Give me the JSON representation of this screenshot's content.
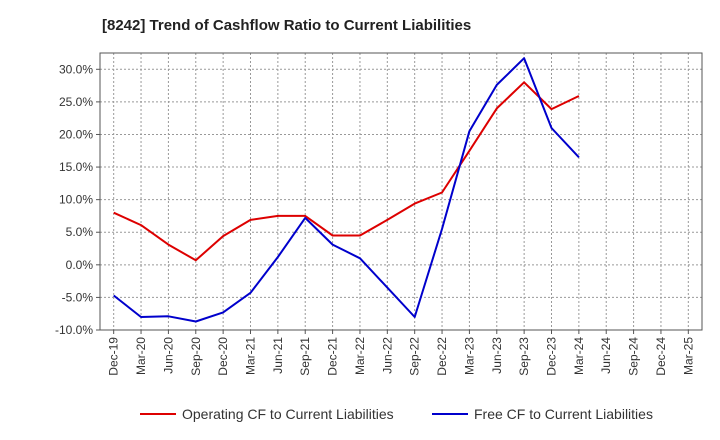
{
  "chart_data": {
    "type": "line",
    "title": "[8242]  Trend of Cashflow Ratio to Current Liabilities",
    "xlabel": "",
    "ylabel": "",
    "ylim": [
      -10,
      32.5
    ],
    "yticks": [
      "-10.0%",
      "-5.0%",
      "0.0%",
      "5.0%",
      "10.0%",
      "15.0%",
      "20.0%",
      "25.0%",
      "30.0%"
    ],
    "ytick_values": [
      -10,
      -5,
      0,
      5,
      10,
      15,
      20,
      25,
      30
    ],
    "categories": [
      "Dec-19",
      "Mar-20",
      "Jun-20",
      "Sep-20",
      "Dec-20",
      "Mar-21",
      "Jun-21",
      "Sep-21",
      "Dec-21",
      "Mar-22",
      "Jun-22",
      "Sep-22",
      "Dec-22",
      "Mar-23",
      "Jun-23",
      "Sep-23",
      "Dec-23",
      "Mar-24",
      "Jun-24",
      "Sep-24",
      "Dec-24",
      "Mar-25"
    ],
    "grid": true,
    "legend_position": "bottom",
    "series": [
      {
        "name": "Operating CF to Current Liabilities",
        "color": "#dd0000",
        "values": [
          8.0,
          6.1,
          3.1,
          0.7,
          4.4,
          6.9,
          7.5,
          7.5,
          4.5,
          4.5,
          6.9,
          9.4,
          11.1,
          17.5,
          24.0,
          28.0,
          23.9,
          25.9,
          null,
          null,
          null,
          null
        ]
      },
      {
        "name": "Free CF to Current Liabilities",
        "color": "#0000cc",
        "values": [
          -4.7,
          -8.0,
          -7.9,
          -8.7,
          -7.3,
          -4.3,
          1.2,
          7.2,
          3.1,
          1.0,
          -3.5,
          -8.0,
          5.5,
          20.5,
          27.6,
          31.7,
          21.0,
          16.5,
          null,
          null,
          null,
          null
        ]
      }
    ]
  }
}
